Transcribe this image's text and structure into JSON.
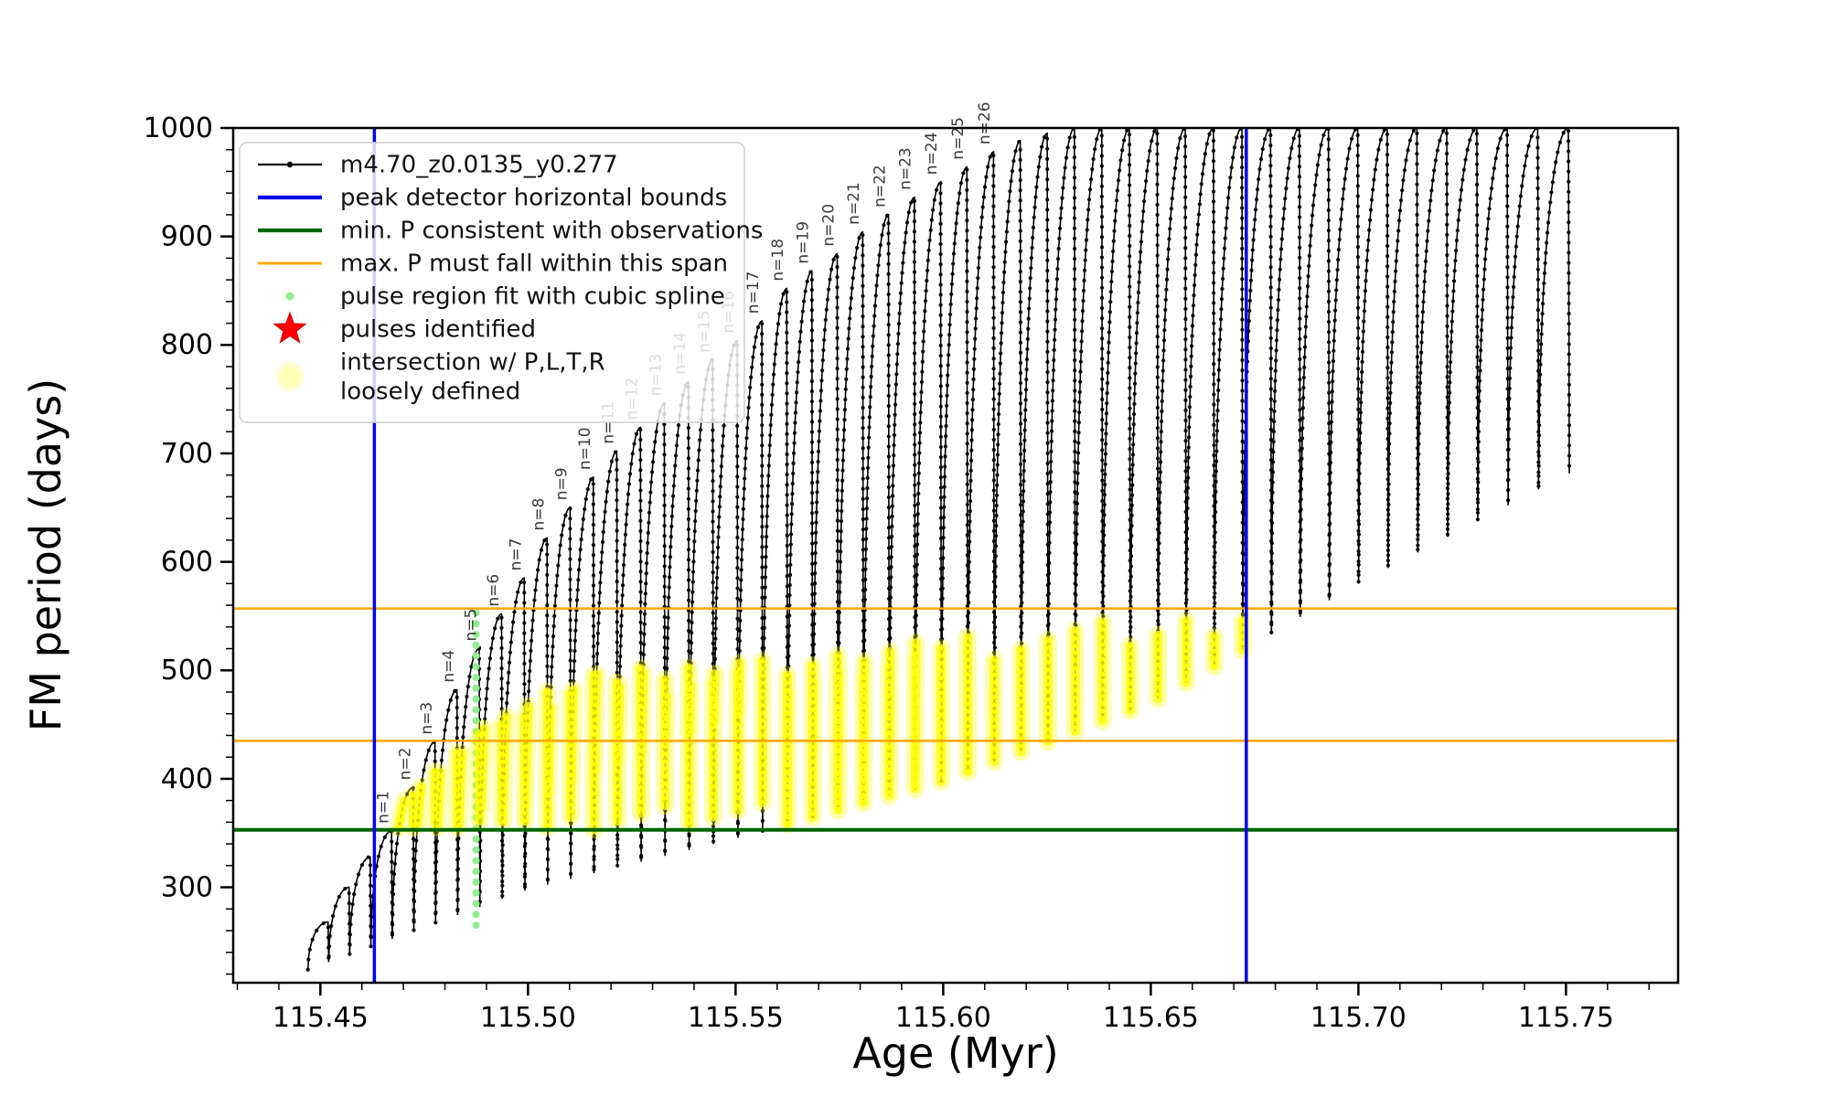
{
  "chart_data": {
    "type": "line",
    "title": "",
    "xlabel": "Age (Myr)",
    "ylabel": "FM period (days)",
    "xlim": [
      115.429,
      115.777
    ],
    "ylim": [
      212,
      1000
    ],
    "x_ticks": [
      115.45,
      115.5,
      115.55,
      115.6,
      115.65,
      115.7,
      115.75
    ],
    "x_minor_step": 0.01,
    "y_ticks": [
      300,
      400,
      500,
      600,
      700,
      800,
      900,
      1000
    ],
    "y_minor_step": 20,
    "grid": false,
    "legend_position": "upper left",
    "series_color": "#000000",
    "track": {
      "comment": "scalloped thermal-pulse track: quarter-ellipse rises with vertical dotted drops",
      "x_start": 115.447,
      "n_pulses": 49,
      "spacing_base": 0.005,
      "spacing_growth": 5e-05,
      "peaks": [
        268,
        300,
        328,
        352,
        392,
        434,
        482,
        520,
        552,
        585,
        622,
        650,
        678,
        702,
        724,
        746,
        766,
        786,
        804,
        822,
        852,
        868,
        884,
        904,
        920,
        936,
        950,
        964,
        978,
        988,
        995,
        1000,
        1000,
        1000,
        1000,
        1000,
        1000,
        1000,
        1000,
        1000,
        1000,
        1000,
        1000,
        1000,
        1000,
        1000,
        1000,
        1000,
        1000
      ],
      "trough_points": [
        [
          115.447,
          224
        ],
        [
          115.5,
          298
        ],
        [
          115.55,
          345
        ],
        [
          115.6,
          398
        ],
        [
          115.65,
          470
        ],
        [
          115.7,
          580
        ],
        [
          115.755,
          690
        ]
      ]
    },
    "pulse_labels": {
      "first_pulse_index": 3,
      "labels": [
        "n=1",
        "n=2",
        "n=3",
        "n=4",
        "n=5",
        "n=6",
        "n=7",
        "n=8",
        "n=9",
        "n=10",
        "n=11",
        "n=12",
        "n=13",
        "n=14",
        "n=15",
        "n=16",
        "n=17",
        "n=18",
        "n=19",
        "n=20",
        "n=21",
        "n=22",
        "n=23",
        "n=24",
        "n=25",
        "n=26"
      ]
    },
    "vlines": {
      "color": "#0000EE",
      "x": [
        115.463,
        115.673
      ]
    },
    "hline_green": {
      "color": "#006400",
      "y": 353
    },
    "hlines_orange": {
      "color": "#FFA500",
      "y": [
        435,
        557
      ]
    },
    "spline_dots": {
      "color": "#90EE90",
      "x": 115.4875,
      "y_min": 265,
      "y_max": 553,
      "count": 30
    },
    "yellow_band": {
      "color": "#FFFF00",
      "x_min": 115.465,
      "x_max": 115.673,
      "y_min": 353,
      "top_points": [
        [
          115.467,
          368
        ],
        [
          115.49,
          452
        ],
        [
          115.51,
          492
        ],
        [
          115.535,
          508
        ],
        [
          115.56,
          516
        ],
        [
          115.59,
          526
        ],
        [
          115.62,
          538
        ],
        [
          115.65,
          549
        ],
        [
          115.673,
          557
        ]
      ]
    },
    "legend": [
      {
        "label": "m4.70_z0.0135_y0.277",
        "marker": "line-dot",
        "color": "#000000"
      },
      {
        "label": "peak detector horizontal bounds",
        "marker": "line",
        "color": "#0000EE"
      },
      {
        "label": "min. P consistent with observations",
        "marker": "line",
        "color": "#006400"
      },
      {
        "label": "max. P must fall within this span",
        "marker": "line",
        "color": "#FFA500"
      },
      {
        "label": "pulse region fit with cubic spline",
        "marker": "dot",
        "color": "#90EE90"
      },
      {
        "label": "pulses identified",
        "marker": "star",
        "color": "#FF0000"
      },
      {
        "label": "intersection w/ P,L,T,R\nloosely defined",
        "marker": "blob",
        "color": "#FFFFB3"
      }
    ]
  }
}
